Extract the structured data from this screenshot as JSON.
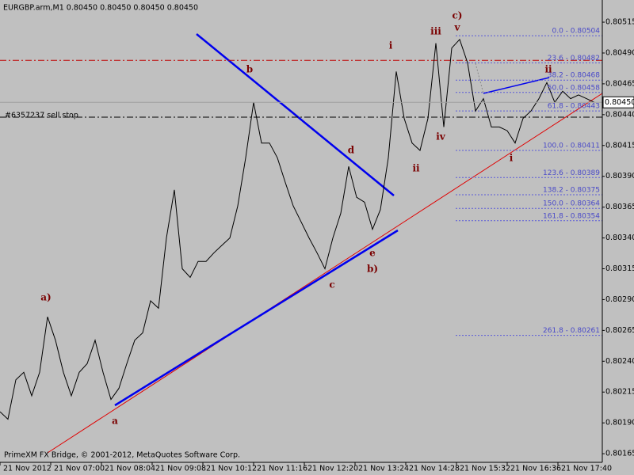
{
  "chart_data": {
    "type": "line",
    "title": "EURGBP.arm,M1  0.80450 0.80450 0.80450 0.80450",
    "footer": "PrimeXM FX Bridge, © 2001-2012, MetaQuotes Software Corp.",
    "ylim": [
      0.80158,
      0.80533
    ],
    "yticks": [
      0.80515,
      {
        "value": 0.8049,
        "label": "0.80490"
      },
      0.80465,
      {
        "value": 0.8044,
        "label": "0.80440"
      },
      0.80415,
      {
        "value": 0.8039,
        "label": "0.80390"
      },
      0.80365,
      {
        "value": 0.8034,
        "label": "0.80340"
      },
      0.80315,
      {
        "value": 0.8029,
        "label": "0.80290"
      },
      0.80265,
      {
        "value": 0.8024,
        "label": "0.80240"
      },
      0.80215,
      {
        "value": 0.8019,
        "label": "0.80190"
      },
      0.80165
    ],
    "xlim": [
      0,
      760
    ],
    "xticks": [
      {
        "value": 0,
        "label": "21 Nov 2012"
      },
      {
        "value": 64,
        "label": "21 Nov 07:00"
      },
      {
        "value": 128,
        "label": "21 Nov 08:04"
      },
      {
        "value": 192,
        "label": "21 Nov 09:08"
      },
      {
        "value": 256,
        "label": "21 Nov 10:12"
      },
      {
        "value": 320,
        "label": "21 Nov 11:16"
      },
      {
        "value": 384,
        "label": "21 Nov 12:20"
      },
      {
        "value": 448,
        "label": "21 Nov 13:24"
      },
      {
        "value": 512,
        "label": "21 Nov 14:28"
      },
      {
        "value": 576,
        "label": "21 Nov 15:32"
      },
      {
        "value": 640,
        "label": "21 Nov 16:36"
      },
      {
        "value": 704,
        "label": "21 Nov 17:40"
      }
    ],
    "grid": false,
    "series": [
      {
        "name": "EURGBP.arm",
        "color": "#000000",
        "x": [
          0,
          10,
          20,
          30,
          40,
          50,
          60,
          70,
          80,
          90,
          100,
          110,
          120,
          130,
          140,
          150,
          160,
          170,
          180,
          190,
          200,
          210,
          220,
          230,
          240,
          250,
          260,
          270,
          280,
          290,
          300,
          310,
          320,
          330,
          340,
          350,
          360,
          370,
          380,
          390,
          400,
          410,
          420,
          430,
          440,
          450,
          460,
          470,
          480,
          490,
          500,
          510,
          520,
          530,
          540,
          550,
          560,
          570,
          580,
          590,
          600,
          610,
          620,
          630,
          640,
          650,
          660,
          670,
          680,
          690,
          700,
          710,
          720,
          730,
          740,
          750
        ],
        "values": [
          0.80199,
          0.80193,
          0.80225,
          0.80231,
          0.80212,
          0.80231,
          0.80276,
          0.80257,
          0.80231,
          0.80212,
          0.80231,
          0.80238,
          0.80257,
          0.80231,
          0.80209,
          0.80218,
          0.80238,
          0.80257,
          0.80263,
          0.80289,
          0.80283,
          0.8034,
          0.80379,
          0.80315,
          0.80308,
          0.80321,
          0.80321,
          0.80328,
          0.80334,
          0.8034,
          0.80366,
          0.80405,
          0.8045,
          0.80417,
          0.80417,
          0.80405,
          0.80385,
          0.80366,
          0.80353,
          0.8034,
          0.80328,
          0.80315,
          0.8034,
          0.8036,
          0.80398,
          0.80373,
          0.80369,
          0.80347,
          0.80363,
          0.80405,
          0.80475,
          0.80437,
          0.80417,
          0.80411,
          0.80437,
          0.80498,
          0.8043,
          0.80494,
          0.80501,
          0.80482,
          0.80443,
          0.80453,
          0.8043,
          0.8043,
          0.80427,
          0.80417,
          0.80437,
          0.80443,
          0.80453,
          0.80466,
          0.8045,
          0.80459,
          0.80453,
          0.80456,
          0.80453,
          0.8045
        ]
      }
    ],
    "last_price": {
      "value": 0.8045,
      "label": "0.80450"
    },
    "order_line": {
      "price": 0.80438,
      "label": "#6357237 sell stop",
      "color": "#000000"
    },
    "level_line": {
      "price": 0.80484,
      "color": "#c00000"
    },
    "fib_color": "#5a5ad8",
    "fib_levels": [
      {
        "price": 0.80504,
        "label": "0.0 - 0.80504"
      },
      {
        "price": 0.80482,
        "label": "23.6 - 0.80482"
      },
      {
        "price": 0.80468,
        "label": "38.2 - 0.80468"
      },
      {
        "price": 0.80458,
        "label": "50.0 - 0.80458"
      },
      {
        "price": 0.80443,
        "label": "61.8 - 0.80443"
      },
      {
        "price": 0.80411,
        "label": "100.0 - 0.80411"
      },
      {
        "price": 0.80389,
        "label": "123.6 - 0.80389"
      },
      {
        "price": 0.80375,
        "label": "138.2 - 0.80375"
      },
      {
        "price": 0.80364,
        "label": "150.0 - 0.80364"
      },
      {
        "price": 0.80354,
        "label": "161.8 - 0.80354"
      },
      {
        "price": 0.80261,
        "label": "261.8 - 0.80261"
      }
    ],
    "annotations": [
      "a)",
      "a",
      "b",
      "c",
      "d",
      "e",
      "b)",
      "i",
      "ii",
      "iii",
      "iv",
      "c)",
      "v",
      "i",
      "ii"
    ]
  }
}
